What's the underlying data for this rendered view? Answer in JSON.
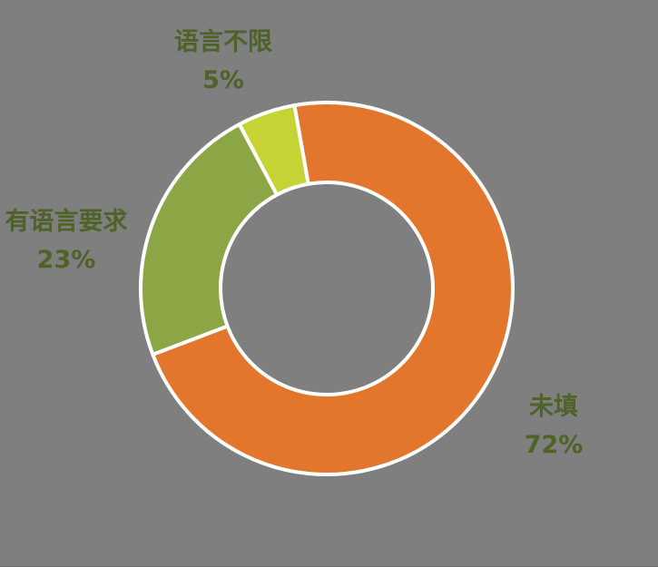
{
  "canvas": {
    "background": "#7F7F7F"
  },
  "chart_data": {
    "type": "pie",
    "subtype": "donut",
    "direction": "clockwise",
    "start_angle_deg": -10,
    "hole_ratio": 0.57,
    "legend": "none",
    "labels_outside": true,
    "slice_border_color": "#FFFFFF",
    "label_color": "#4F6228",
    "slices": [
      {
        "label": "未填",
        "value": 72,
        "pct_label": "72%",
        "color": "#E2762D"
      },
      {
        "label": "有语言要求",
        "value": 23,
        "pct_label": "23%",
        "color": "#8CA646"
      },
      {
        "label": "语言不限",
        "value": 5,
        "pct_label": "5%",
        "color": "#C6D334"
      }
    ]
  }
}
